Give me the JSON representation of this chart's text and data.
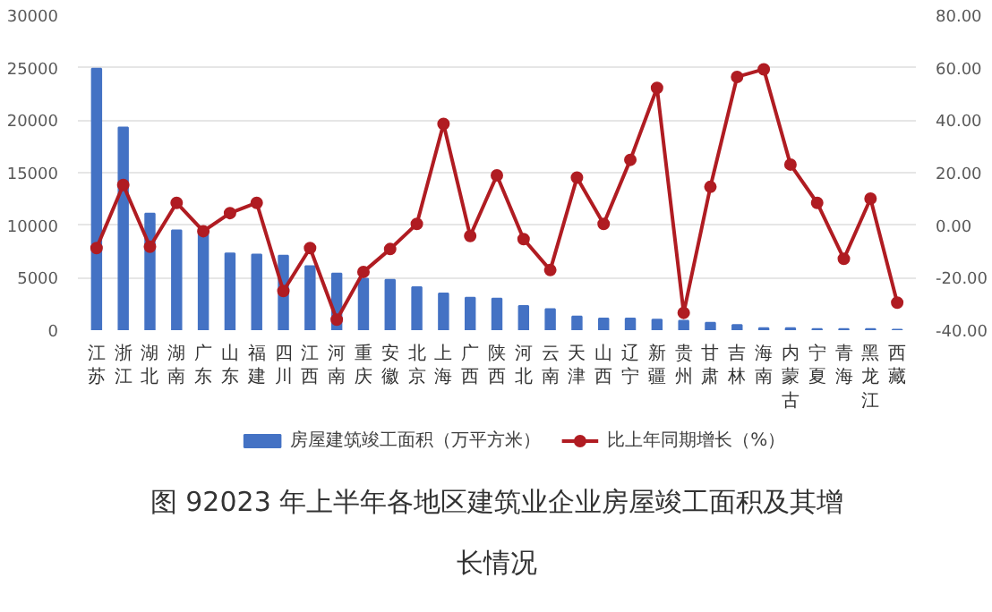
{
  "chart_data": {
    "type": "bar",
    "title": "图 92023 年上半年各地区建筑业企业房屋竣工面积及其增长情况",
    "categories": [
      "江苏",
      "浙江",
      "湖北",
      "湖南",
      "广东",
      "山东",
      "福建",
      "四川",
      "江西",
      "河南",
      "重庆",
      "安徽",
      "北京",
      "上海",
      "广西",
      "陕西",
      "河北",
      "云南",
      "天津",
      "山西",
      "辽宁",
      "新疆",
      "贵州",
      "甘肃",
      "吉林",
      "海南",
      "内蒙古",
      "宁夏",
      "青海",
      "黑龙江",
      "西藏"
    ],
    "series": [
      {
        "name": "房屋建筑竣工面积（万平方米）",
        "color": "#4472c4",
        "values": [
          24900,
          19300,
          11100,
          9500,
          9300,
          7300,
          7200,
          7100,
          6100,
          5400,
          4900,
          4800,
          4100,
          3500,
          3100,
          3000,
          2300,
          2000,
          1300,
          1100,
          1100,
          1000,
          900,
          700,
          500,
          200,
          200,
          100,
          100,
          100,
          50
        ]
      },
      {
        "name": "比上年同期增长（%）",
        "type": "line",
        "axis": "y2",
        "color": "#b01c22",
        "marker": "circle",
        "values": [
          -8.7,
          15.3,
          -8.2,
          8.5,
          -2.3,
          4.6,
          8.5,
          -25.1,
          -8.7,
          -36,
          -17.8,
          -9.1,
          0.5,
          38.6,
          -4.1,
          19,
          -5.3,
          -17.1,
          18.1,
          0.5,
          24.9,
          52.3,
          -33.4,
          14.6,
          56.5,
          59.4,
          23.1,
          8.5,
          -12.8,
          10.1,
          -29.5
        ]
      }
    ],
    "ylim": [
      0,
      30000
    ],
    "yticks": [
      0,
      5000,
      10000,
      15000,
      20000,
      25000,
      30000
    ],
    "y2lim": [
      -40,
      80
    ],
    "y2ticks": [
      {
        "value": -40,
        "label": "-40.00"
      },
      {
        "value": -20,
        "label": "-20.00"
      },
      {
        "value": 0,
        "label": "0.00"
      },
      {
        "value": 20,
        "label": "20.00"
      },
      {
        "value": 40,
        "label": "40.00"
      },
      {
        "value": 60,
        "label": "60.00"
      },
      {
        "value": 80,
        "label": "80.00"
      }
    ],
    "grid": "y",
    "legend": "bottom"
  }
}
